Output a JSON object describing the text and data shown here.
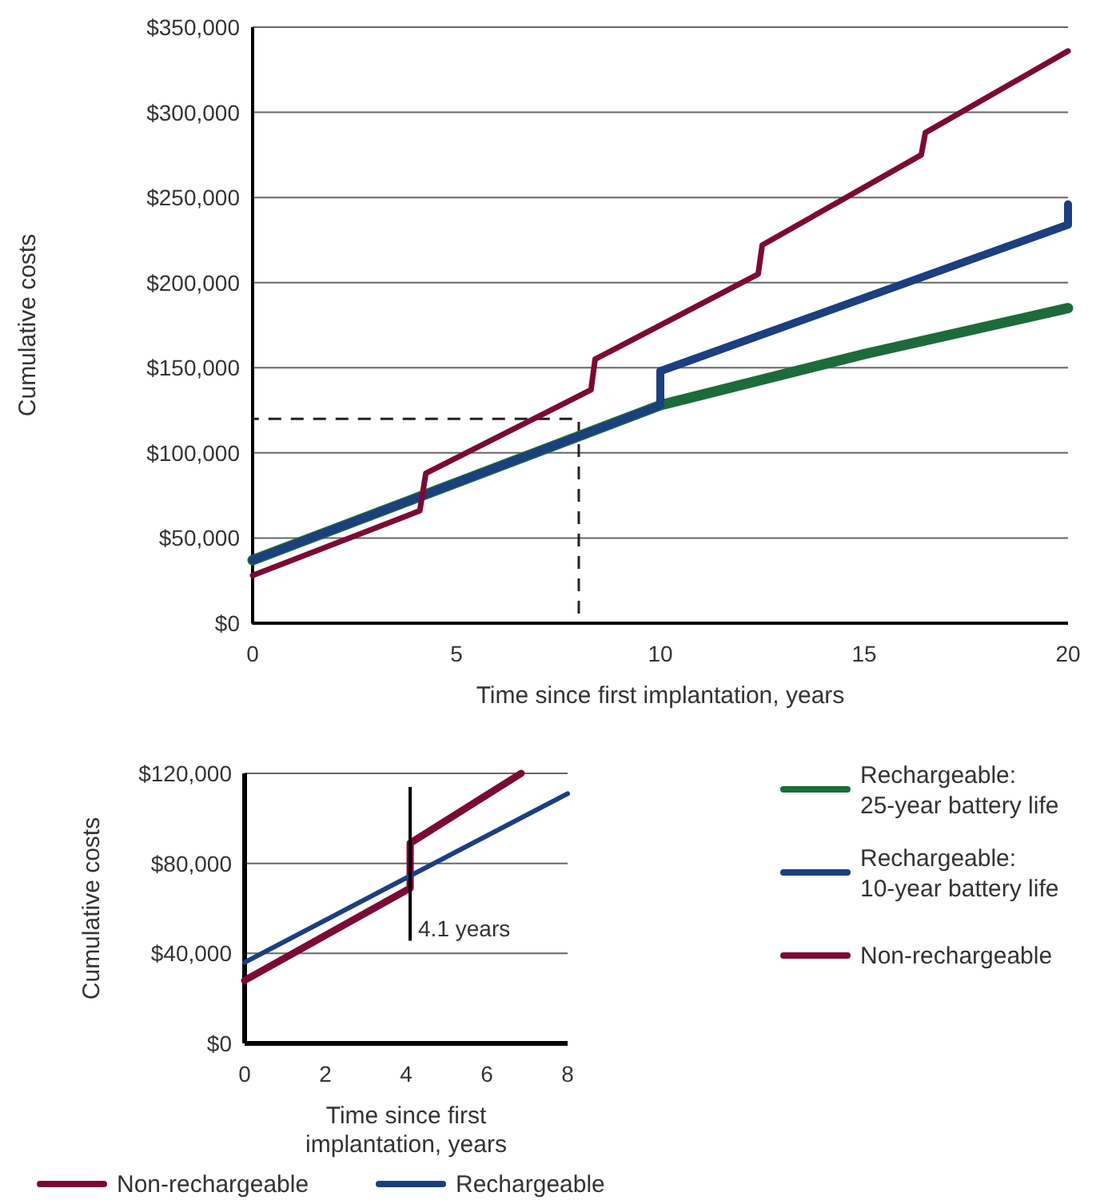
{
  "chart_data": [
    {
      "type": "line",
      "xlabel": "Time since first implantation, years",
      "ylabel": "Cumulative costs",
      "xlim": [
        0,
        20
      ],
      "xticks": [
        0,
        5,
        10,
        15,
        20
      ],
      "ylim": [
        0,
        350000
      ],
      "yticks": [
        {
          "value": 0,
          "label": "$0"
        },
        {
          "value": 50000,
          "label": "$50,000"
        },
        {
          "value": 100000,
          "label": "$100,000"
        },
        {
          "value": 150000,
          "label": "$150,000"
        },
        {
          "value": 200000,
          "label": "$200,000"
        },
        {
          "value": 250000,
          "label": "$250,000"
        },
        {
          "value": 300000,
          "label": "$300,000"
        },
        {
          "value": 350000,
          "label": "$350,000"
        }
      ],
      "grid": "y",
      "legend": "bottom right",
      "line_style": "solid",
      "series": [
        {
          "name": "Rechargeable:\n25-year battery life",
          "color": "#1d6b3a",
          "x": [
            0,
            10,
            15,
            20
          ],
          "values": [
            37000,
            128000,
            158000,
            185000
          ]
        },
        {
          "name": "Rechargeable:\n10-year battery life",
          "color": "#1b3f7f",
          "x": [
            0,
            10,
            10,
            20,
            20
          ],
          "values": [
            37000,
            128000,
            148000,
            234000,
            246000
          ]
        },
        {
          "name": "Non-rechargeable",
          "color": "#7b0a34",
          "x": [
            0,
            4.1,
            4.25,
            8.3,
            8.4,
            12.4,
            12.5,
            16.4,
            16.5,
            20
          ],
          "values": [
            28000,
            66000,
            88000,
            137000,
            155000,
            205000,
            222000,
            275000,
            288000,
            336000
          ]
        }
      ]
    },
    {
      "type": "line",
      "xlabel": "Time since first\nimplantation, years",
      "ylabel": "Cumulative costs",
      "xlim": [
        0,
        8
      ],
      "xticks": [
        0,
        2,
        4,
        6,
        8
      ],
      "ylim": [
        0,
        120000
      ],
      "yticks": [
        {
          "value": 0,
          "label": "$0"
        },
        {
          "value": 40000,
          "label": "$40,000"
        },
        {
          "value": 80000,
          "label": "$80,000"
        },
        {
          "value": 120000,
          "label": "$120,000"
        }
      ],
      "grid": "y",
      "legend": "bottom",
      "line_style": "solid",
      "ref_lines": [
        {
          "axis": "x",
          "value": 4.1,
          "label": "4.1 years",
          "color": "#000000"
        }
      ],
      "series": [
        {
          "name": "Non-rechargeable",
          "color": "#7b0a34",
          "x": [
            0,
            4.1,
            4.1,
            6.85
          ],
          "values": [
            28000,
            69000,
            89000,
            120000
          ]
        },
        {
          "name": "Rechargeable",
          "color": "#1b3f7f",
          "x": [
            0,
            8
          ],
          "values": [
            36000,
            111000
          ]
        }
      ]
    }
  ]
}
